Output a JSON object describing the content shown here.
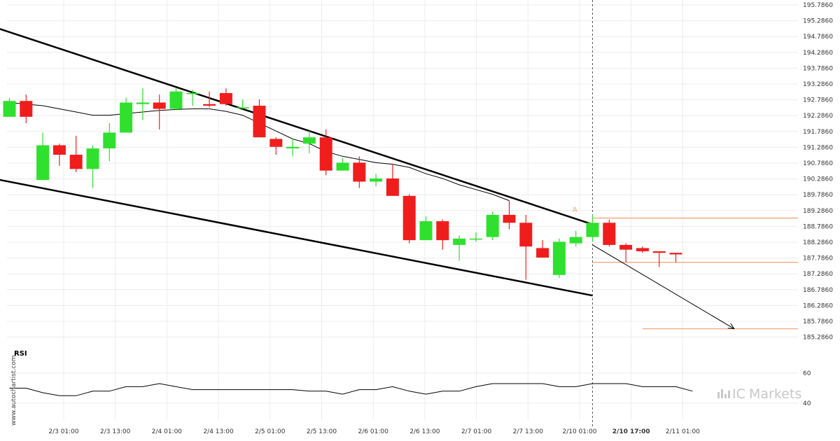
{
  "chart_data": {
    "type": "candlestick",
    "y_axis": {
      "ticks": [
        "195.7860",
        "195.2860",
        "194.7860",
        "194.2860",
        "193.7860",
        "193.2860",
        "192.7860",
        "192.2860",
        "191.7860",
        "191.2860",
        "190.7860",
        "190.2860",
        "189.7860",
        "189.2860",
        "188.7860",
        "188.2860",
        "187.7860",
        "187.2860",
        "186.7860",
        "186.2860",
        "185.7860",
        "185.2860"
      ],
      "range": [
        185.0,
        195.8
      ]
    },
    "x_axis": {
      "ticks": [
        "2/3 01:00",
        "2/3 13:00",
        "2/4 01:00",
        "2/4 13:00",
        "2/5 01:00",
        "2/5 13:00",
        "2/6 01:00",
        "2/6 13:00",
        "2/7 01:00",
        "2/7 13:00",
        "2/10 01:00",
        "2/10 17:00",
        "2/11 01:00"
      ],
      "highlighted_tick": "2/10 17:00"
    },
    "candles": [
      {
        "o": 192.25,
        "h": 192.85,
        "l": 192.25,
        "c": 192.75
      },
      {
        "o": 192.75,
        "h": 192.95,
        "l": 192.05,
        "c": 192.25
      },
      {
        "o": 190.25,
        "h": 191.75,
        "l": 190.25,
        "c": 191.35
      },
      {
        "o": 191.35,
        "h": 191.4,
        "l": 190.7,
        "c": 191.05
      },
      {
        "o": 191.05,
        "h": 191.65,
        "l": 190.5,
        "c": 190.6
      },
      {
        "o": 190.6,
        "h": 191.35,
        "l": 190.0,
        "c": 191.25
      },
      {
        "o": 191.25,
        "h": 192.05,
        "l": 190.85,
        "c": 191.75
      },
      {
        "o": 191.75,
        "h": 192.85,
        "l": 191.75,
        "c": 192.7
      },
      {
        "o": 192.65,
        "h": 193.15,
        "l": 192.15,
        "c": 192.7
      },
      {
        "o": 192.7,
        "h": 192.95,
        "l": 191.85,
        "c": 192.5
      },
      {
        "o": 192.5,
        "h": 193.15,
        "l": 192.45,
        "c": 193.05
      },
      {
        "o": 193.0,
        "h": 193.1,
        "l": 192.6,
        "c": 193.0
      },
      {
        "o": 192.65,
        "h": 193.05,
        "l": 192.55,
        "c": 192.6
      },
      {
        "o": 193.0,
        "h": 193.15,
        "l": 192.6,
        "c": 192.65
      },
      {
        "o": 192.55,
        "h": 192.8,
        "l": 192.5,
        "c": 192.55
      },
      {
        "o": 192.6,
        "h": 192.8,
        "l": 191.6,
        "c": 191.6
      },
      {
        "o": 191.55,
        "h": 191.6,
        "l": 191.05,
        "c": 191.3
      },
      {
        "o": 191.25,
        "h": 191.55,
        "l": 191.0,
        "c": 191.3
      },
      {
        "o": 191.4,
        "h": 191.8,
        "l": 191.1,
        "c": 191.6
      },
      {
        "o": 191.6,
        "h": 191.85,
        "l": 190.4,
        "c": 190.55
      },
      {
        "o": 190.55,
        "h": 190.95,
        "l": 190.55,
        "c": 190.8
      },
      {
        "o": 190.8,
        "h": 191.0,
        "l": 190.0,
        "c": 190.2
      },
      {
        "o": 190.2,
        "h": 190.45,
        "l": 190.05,
        "c": 190.3
      },
      {
        "o": 190.3,
        "h": 190.75,
        "l": 189.75,
        "c": 189.75
      },
      {
        "o": 189.75,
        "h": 189.8,
        "l": 188.25,
        "c": 188.35
      },
      {
        "o": 188.35,
        "h": 189.1,
        "l": 188.35,
        "c": 188.95
      },
      {
        "o": 188.95,
        "h": 189.0,
        "l": 188.05,
        "c": 188.35
      },
      {
        "o": 188.2,
        "h": 188.5,
        "l": 187.7,
        "c": 188.4
      },
      {
        "o": 188.4,
        "h": 188.6,
        "l": 188.3,
        "c": 188.4
      },
      {
        "o": 188.45,
        "h": 189.25,
        "l": 188.35,
        "c": 189.15
      },
      {
        "o": 189.15,
        "h": 189.6,
        "l": 188.7,
        "c": 188.9
      },
      {
        "o": 188.9,
        "h": 189.15,
        "l": 187.1,
        "c": 188.15
      },
      {
        "o": 188.1,
        "h": 188.35,
        "l": 187.8,
        "c": 187.8
      },
      {
        "o": 187.25,
        "h": 188.4,
        "l": 187.15,
        "c": 188.3
      },
      {
        "o": 188.25,
        "h": 188.65,
        "l": 188.15,
        "c": 188.45
      },
      {
        "o": 188.45,
        "h": 189.15,
        "l": 188.3,
        "c": 188.9
      },
      {
        "o": 188.9,
        "h": 189.0,
        "l": 188.15,
        "c": 188.2
      },
      {
        "o": 188.2,
        "h": 188.25,
        "l": 187.65,
        "c": 188.05
      },
      {
        "o": 188.1,
        "h": 188.15,
        "l": 187.95,
        "c": 188.0
      },
      {
        "o": 188.0,
        "h": 188.0,
        "l": 187.5,
        "c": 187.95
      },
      {
        "o": 187.95,
        "h": 187.95,
        "l": 187.65,
        "c": 187.9
      }
    ],
    "moving_average": [
      192.7,
      192.65,
      192.6,
      192.5,
      192.4,
      192.3,
      192.3,
      192.35,
      192.4,
      192.45,
      192.48,
      192.5,
      192.5,
      192.42,
      192.3,
      192.05,
      191.8,
      191.55,
      191.4,
      191.15,
      191.0,
      190.9,
      190.8,
      190.75,
      190.65,
      190.45,
      190.3,
      190.1,
      189.95,
      189.8,
      189.6
    ],
    "channel": {
      "upper": [
        {
          "x": -1.0,
          "y": 195.1
        },
        {
          "x": 35.0,
          "y": 188.85
        }
      ],
      "lower": [
        {
          "x": -1.0,
          "y": 190.3
        },
        {
          "x": 35.0,
          "y": 186.6
        }
      ]
    },
    "projection": {
      "from": {
        "x": 35.0,
        "y": 188.2
      },
      "to": {
        "x": 43.5,
        "y": 185.55
      }
    },
    "levels": [
      {
        "value": 189.05,
        "from_x": 35.0
      },
      {
        "value": 187.65,
        "from_x": 35.0
      },
      {
        "value": 185.55,
        "from_x": 38.0
      }
    ],
    "marker": {
      "label": "A",
      "x": 34.0,
      "y": 189.25
    },
    "vertical_line_x": 35.0,
    "rsi": {
      "title": "RSI",
      "ticks": [
        "60",
        "40"
      ],
      "range": [
        30,
        70
      ],
      "values": [
        50,
        50,
        47,
        45,
        45,
        48,
        48,
        51,
        51,
        53,
        51,
        49,
        49,
        49,
        49,
        49,
        49,
        49,
        48,
        48,
        46,
        49,
        49,
        51,
        48,
        46,
        48,
        48,
        51,
        53,
        53,
        53,
        53,
        51,
        51,
        53,
        53,
        53,
        51,
        51,
        51,
        48
      ]
    }
  },
  "brand": {
    "ic": "IC",
    "markets": "Markets"
  },
  "watermark": "www.autochartist.com"
}
